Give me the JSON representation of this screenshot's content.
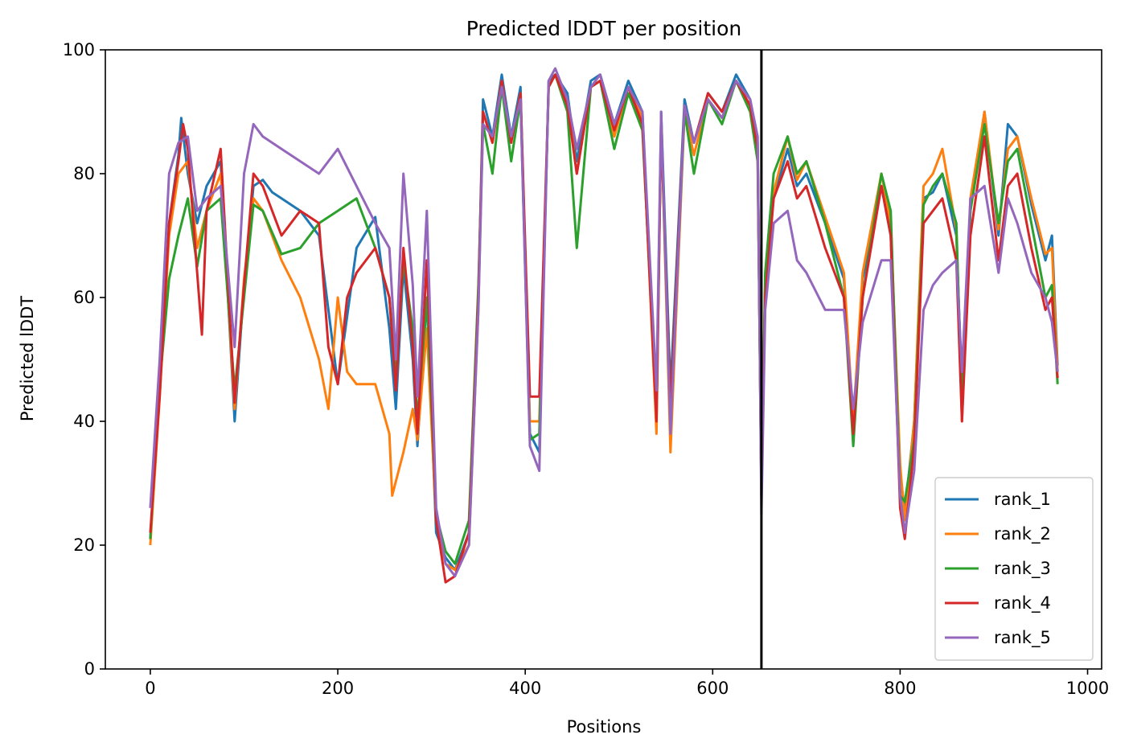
{
  "chart_data": {
    "type": "line",
    "title": "Predicted lDDT per position",
    "xlabel": "Positions",
    "ylabel": "Predicted lDDT",
    "xlim": [
      -48,
      1015
    ],
    "ylim": [
      0,
      100
    ],
    "xticks": [
      0,
      200,
      400,
      600,
      800,
      1000
    ],
    "yticks": [
      0,
      20,
      40,
      60,
      80,
      100
    ],
    "grid": false,
    "legend_position": "lower right",
    "vertical_line": {
      "x": 652,
      "color": "#000000"
    },
    "series": [
      {
        "name": "rank_1",
        "color": "#1f77b4",
        "x": [
          0,
          10,
          20,
          30,
          33,
          40,
          50,
          60,
          75,
          90,
          100,
          110,
          120,
          130,
          140,
          160,
          180,
          200,
          220,
          240,
          255,
          262,
          270,
          280,
          285,
          295,
          305,
          315,
          325,
          340,
          350,
          355,
          365,
          375,
          385,
          395,
          405,
          415,
          425,
          432,
          445,
          455,
          470,
          480,
          495,
          510,
          525,
          540,
          545,
          555,
          570,
          580,
          595,
          610,
          625,
          640,
          648,
          652,
          656,
          665,
          680,
          690,
          700,
          720,
          740,
          750,
          760,
          780,
          790,
          800,
          805,
          815,
          825,
          835,
          845,
          860,
          866,
          875,
          890,
          905,
          915,
          925,
          940,
          955,
          962,
          968
        ],
        "y": [
          21,
          45,
          72,
          83,
          89,
          80,
          72,
          78,
          82,
          40,
          62,
          78,
          79,
          77,
          76,
          74,
          70,
          46,
          68,
          73,
          55,
          42,
          65,
          50,
          36,
          60,
          22,
          18,
          16,
          22,
          60,
          92,
          86,
          96,
          86,
          94,
          38,
          35,
          95,
          96,
          93,
          82,
          95,
          96,
          88,
          95,
          90,
          40,
          90,
          45,
          92,
          85,
          93,
          90,
          96,
          92,
          85,
          30,
          62,
          76,
          84,
          78,
          80,
          72,
          63,
          38,
          63,
          78,
          70,
          32,
          25,
          40,
          76,
          77,
          80,
          70,
          45,
          74,
          90,
          70,
          88,
          86,
          75,
          66,
          70,
          49
        ]
      },
      {
        "name": "rank_2",
        "color": "#ff7f0e",
        "x": [
          0,
          10,
          20,
          30,
          40,
          50,
          60,
          75,
          90,
          100,
          110,
          120,
          140,
          160,
          180,
          190,
          200,
          210,
          220,
          240,
          255,
          258,
          270,
          280,
          285,
          295,
          305,
          315,
          325,
          340,
          350,
          355,
          365,
          375,
          385,
          395,
          405,
          415,
          425,
          432,
          445,
          455,
          470,
          480,
          495,
          510,
          525,
          540,
          545,
          555,
          570,
          580,
          595,
          610,
          625,
          640,
          648,
          652,
          656,
          665,
          680,
          690,
          700,
          720,
          740,
          750,
          760,
          780,
          790,
          800,
          805,
          815,
          825,
          835,
          845,
          860,
          866,
          875,
          890,
          905,
          915,
          925,
          940,
          955,
          962,
          968
        ],
        "y": [
          20,
          44,
          70,
          80,
          82,
          68,
          74,
          80,
          42,
          63,
          76,
          74,
          66,
          60,
          50,
          42,
          60,
          48,
          46,
          46,
          38,
          28,
          35,
          42,
          37,
          55,
          24,
          17,
          16,
          20,
          58,
          90,
          85,
          95,
          85,
          93,
          40,
          40,
          94,
          96,
          92,
          80,
          94,
          95,
          86,
          94,
          89,
          38,
          89,
          35,
          90,
          83,
          92,
          89,
          95,
          91,
          84,
          28,
          62,
          77,
          86,
          79,
          82,
          73,
          64,
          40,
          64,
          80,
          72,
          33,
          24,
          40,
          78,
          80,
          84,
          71,
          40,
          76,
          90,
          71,
          84,
          86,
          76,
          67,
          68,
          48
        ]
      },
      {
        "name": "rank_3",
        "color": "#2ca02c",
        "x": [
          0,
          10,
          20,
          30,
          40,
          50,
          60,
          75,
          90,
          100,
          110,
          120,
          140,
          160,
          180,
          200,
          220,
          240,
          255,
          262,
          270,
          280,
          285,
          295,
          305,
          315,
          325,
          340,
          350,
          355,
          365,
          375,
          385,
          395,
          405,
          415,
          425,
          432,
          445,
          455,
          470,
          480,
          495,
          510,
          525,
          540,
          545,
          555,
          570,
          580,
          595,
          610,
          625,
          640,
          648,
          652,
          656,
          665,
          680,
          690,
          700,
          720,
          740,
          750,
          760,
          780,
          790,
          800,
          805,
          815,
          825,
          835,
          845,
          860,
          866,
          875,
          890,
          905,
          915,
          925,
          940,
          955,
          962,
          968
        ],
        "y": [
          21,
          46,
          63,
          70,
          76,
          65,
          74,
          76,
          45,
          60,
          75,
          74,
          67,
          68,
          72,
          74,
          76,
          68,
          60,
          48,
          66,
          55,
          40,
          60,
          25,
          19,
          17,
          24,
          62,
          88,
          80,
          94,
          82,
          92,
          37,
          38,
          94,
          96,
          90,
          68,
          94,
          95,
          84,
          93,
          87,
          42,
          88,
          40,
          90,
          80,
          92,
          88,
          95,
          90,
          82,
          28,
          64,
          80,
          86,
          80,
          82,
          72,
          60,
          36,
          60,
          80,
          74,
          28,
          27,
          37,
          75,
          78,
          80,
          72,
          42,
          74,
          88,
          72,
          82,
          84,
          72,
          60,
          62,
          46
        ]
      },
      {
        "name": "rank_4",
        "color": "#d62728",
        "x": [
          0,
          10,
          20,
          30,
          35,
          40,
          50,
          55,
          60,
          75,
          90,
          100,
          110,
          120,
          140,
          160,
          180,
          190,
          200,
          210,
          220,
          240,
          255,
          262,
          270,
          280,
          285,
          295,
          305,
          315,
          325,
          340,
          350,
          355,
          365,
          375,
          385,
          395,
          405,
          415,
          425,
          432,
          445,
          455,
          470,
          480,
          495,
          510,
          525,
          540,
          545,
          555,
          570,
          580,
          595,
          610,
          625,
          640,
          648,
          652,
          656,
          665,
          680,
          690,
          700,
          720,
          740,
          750,
          760,
          780,
          790,
          800,
          805,
          815,
          825,
          835,
          845,
          860,
          866,
          875,
          890,
          905,
          915,
          925,
          940,
          955,
          962,
          968
        ],
        "y": [
          22,
          44,
          72,
          82,
          88,
          84,
          64,
          54,
          74,
          84,
          43,
          62,
          80,
          78,
          70,
          74,
          72,
          52,
          46,
          60,
          64,
          68,
          60,
          45,
          68,
          52,
          38,
          66,
          24,
          14,
          15,
          22,
          60,
          90,
          85,
          95,
          85,
          93,
          44,
          44,
          94,
          96,
          91,
          80,
          94,
          95,
          87,
          94,
          88,
          40,
          88,
          42,
          91,
          85,
          93,
          90,
          95,
          91,
          84,
          28,
          60,
          76,
          82,
          76,
          78,
          68,
          60,
          38,
          60,
          78,
          70,
          26,
          21,
          36,
          72,
          74,
          76,
          66,
          40,
          70,
          86,
          66,
          78,
          80,
          68,
          58,
          60,
          47
        ]
      },
      {
        "name": "rank_5",
        "color": "#9467bd",
        "x": [
          0,
          10,
          20,
          30,
          40,
          50,
          60,
          75,
          90,
          100,
          110,
          120,
          140,
          160,
          180,
          200,
          220,
          240,
          255,
          262,
          270,
          280,
          285,
          295,
          305,
          315,
          325,
          340,
          350,
          355,
          365,
          375,
          385,
          395,
          405,
          415,
          425,
          432,
          445,
          455,
          470,
          480,
          495,
          510,
          525,
          540,
          545,
          555,
          570,
          580,
          595,
          610,
          625,
          640,
          648,
          652,
          656,
          665,
          680,
          690,
          700,
          720,
          740,
          750,
          760,
          780,
          790,
          800,
          805,
          815,
          825,
          835,
          845,
          860,
          866,
          875,
          890,
          905,
          915,
          925,
          940,
          955,
          962,
          968
        ],
        "y": [
          26,
          50,
          80,
          85,
          86,
          74,
          76,
          78,
          52,
          80,
          88,
          86,
          84,
          82,
          80,
          84,
          78,
          72,
          68,
          50,
          80,
          62,
          44,
          74,
          26,
          17,
          15,
          20,
          58,
          88,
          86,
          94,
          86,
          92,
          36,
          32,
          95,
          97,
          92,
          84,
          94,
          96,
          88,
          94,
          90,
          45,
          90,
          38,
          91,
          85,
          92,
          89,
          95,
          92,
          86,
          25,
          58,
          72,
          74,
          66,
          64,
          58,
          58,
          42,
          56,
          66,
          66,
          28,
          22,
          32,
          58,
          62,
          64,
          66,
          48,
          76,
          78,
          64,
          76,
          72,
          64,
          60,
          56,
          48
        ]
      }
    ]
  }
}
